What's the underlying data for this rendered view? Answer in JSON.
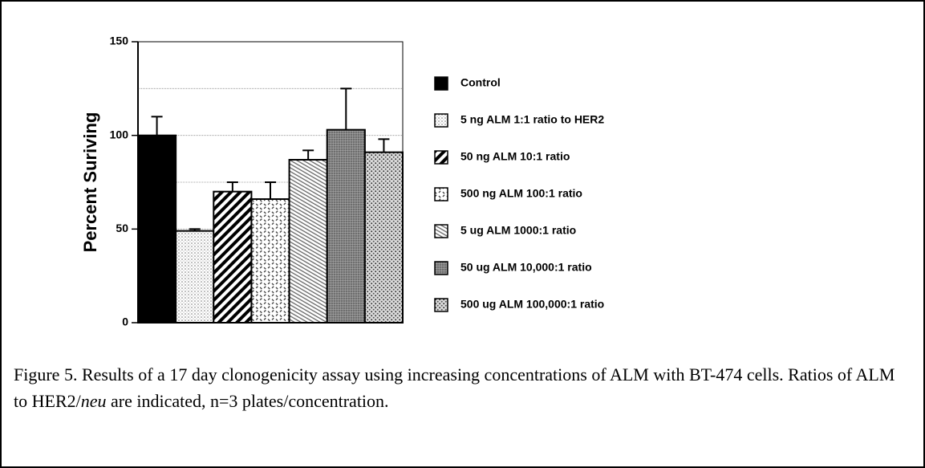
{
  "chart_data": {
    "type": "bar",
    "y_label": "Percent Suriving",
    "categories": [
      "Control",
      "5 ng ALM  1:1 ratio to HER2",
      "50 ng ALM  10:1 ratio",
      "500 ng ALM  100:1 ratio",
      "5 ug ALM 1000:1 ratio",
      "50 ug ALM 10,000:1 ratio",
      "500 ug ALM 100,000:1 ratio"
    ],
    "values": [
      100,
      49,
      70,
      66,
      87,
      103,
      91
    ],
    "errors": [
      10,
      1,
      5,
      9,
      5,
      22,
      7
    ],
    "patterns": [
      "solid",
      "dots",
      "diagonal",
      "crosshatch",
      "fine-diagonal",
      "dense",
      "stipple"
    ],
    "ylim": [
      0,
      150
    ],
    "yticks": [
      0,
      50,
      100,
      150
    ],
    "minor_grid": [
      25,
      75,
      125
    ],
    "grid": true,
    "legend": "right"
  },
  "caption": {
    "before": "Figure 5. Results of a 17 day clonogenicity assay using increasing concentrations of ALM with BT-474 cells.  Ratios of ALM to HER2/",
    "italic": "neu",
    "after": " are indicated, n=3 plates/concentration."
  }
}
